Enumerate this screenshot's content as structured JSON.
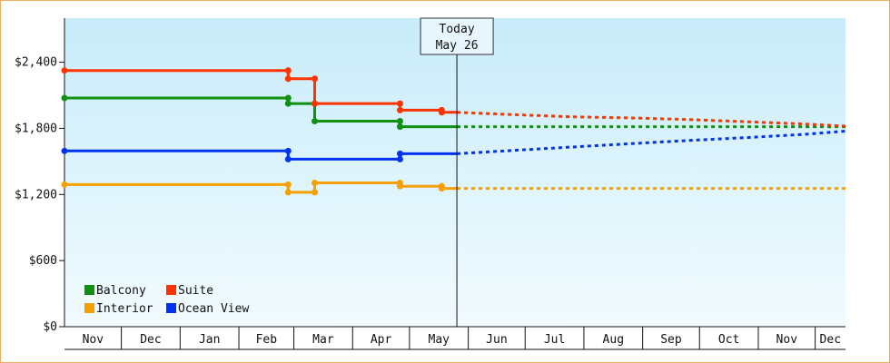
{
  "chart_data": {
    "type": "line",
    "subtype": "step",
    "title": "",
    "xlabel": "",
    "ylabel": "",
    "ylim": [
      0,
      2800
    ],
    "y_ticks": [
      {
        "value": 0,
        "label": "$0"
      },
      {
        "value": 600,
        "label": "$600"
      },
      {
        "value": 1200,
        "label": "$1,200"
      },
      {
        "value": 1800,
        "label": "$1,800"
      },
      {
        "value": 2400,
        "label": "$2,400"
      }
    ],
    "x_start": "2023-11-01",
    "x_end": "2024-12-17",
    "month_labels": [
      {
        "label": "Nov",
        "start": "2023-11-01",
        "end": "2023-12-01"
      },
      {
        "label": "Dec",
        "start": "2023-12-01",
        "end": "2024-01-01"
      },
      {
        "label": "Jan",
        "start": "2024-01-01",
        "end": "2024-02-01"
      },
      {
        "label": "Feb",
        "start": "2024-02-01",
        "end": "2024-03-01"
      },
      {
        "label": "Mar",
        "start": "2024-03-01",
        "end": "2024-04-01"
      },
      {
        "label": "Apr",
        "start": "2024-04-01",
        "end": "2024-05-01"
      },
      {
        "label": "May",
        "start": "2024-05-01",
        "end": "2024-06-01"
      },
      {
        "label": "Jun",
        "start": "2024-06-01",
        "end": "2024-07-01"
      },
      {
        "label": "Jul",
        "start": "2024-07-01",
        "end": "2024-08-01"
      },
      {
        "label": "Aug",
        "start": "2024-08-01",
        "end": "2024-09-01"
      },
      {
        "label": "Sep",
        "start": "2024-09-01",
        "end": "2024-10-01"
      },
      {
        "label": "Oct",
        "start": "2024-10-01",
        "end": "2024-11-01"
      },
      {
        "label": "Nov",
        "start": "2024-11-01",
        "end": "2024-12-01"
      },
      {
        "label": "Dec",
        "start": "2024-12-01",
        "end": "2024-12-17"
      }
    ],
    "today": {
      "date": "2024-05-26",
      "line1": "Today",
      "line2": "May 26"
    },
    "grid": false,
    "legend_position": "bottom-left",
    "series": [
      {
        "name": "Balcony",
        "color": "#109010",
        "history": [
          [
            "2023-11-01",
            2075
          ],
          [
            "2024-02-27",
            2075
          ],
          [
            "2024-02-27",
            2025
          ],
          [
            "2024-03-12",
            2025
          ],
          [
            "2024-03-12",
            1865
          ],
          [
            "2024-04-26",
            1865
          ],
          [
            "2024-04-26",
            1815
          ],
          [
            "2024-05-26",
            1815
          ]
        ],
        "markers": [
          [
            "2023-11-01",
            2075
          ],
          [
            "2024-02-27",
            2075
          ],
          [
            "2024-02-27",
            2025
          ],
          [
            "2024-03-12",
            2025
          ],
          [
            "2024-03-12",
            1865
          ],
          [
            "2024-04-26",
            1865
          ],
          [
            "2024-04-26",
            1815
          ]
        ],
        "forecast": [
          [
            "2024-05-26",
            1815
          ],
          [
            "2024-12-17",
            1815
          ]
        ]
      },
      {
        "name": "Suite",
        "color": "#ff3300",
        "history": [
          [
            "2023-11-01",
            2325
          ],
          [
            "2024-02-27",
            2325
          ],
          [
            "2024-02-27",
            2250
          ],
          [
            "2024-03-12",
            2250
          ],
          [
            "2024-03-12",
            2025
          ],
          [
            "2024-04-26",
            2025
          ],
          [
            "2024-04-26",
            1965
          ],
          [
            "2024-05-18",
            1965
          ],
          [
            "2024-05-18",
            1945
          ],
          [
            "2024-05-26",
            1945
          ]
        ],
        "markers": [
          [
            "2023-11-01",
            2325
          ],
          [
            "2024-02-27",
            2325
          ],
          [
            "2024-02-27",
            2250
          ],
          [
            "2024-03-12",
            2250
          ],
          [
            "2024-03-12",
            2025
          ],
          [
            "2024-04-26",
            2025
          ],
          [
            "2024-04-26",
            1965
          ],
          [
            "2024-05-18",
            1965
          ],
          [
            "2024-05-18",
            1945
          ]
        ],
        "forecast": [
          [
            "2024-05-26",
            1945
          ],
          [
            "2024-06-25",
            1925
          ],
          [
            "2024-07-25",
            1905
          ],
          [
            "2024-08-25",
            1895
          ],
          [
            "2024-09-25",
            1880
          ],
          [
            "2024-10-25",
            1860
          ],
          [
            "2024-11-25",
            1840
          ],
          [
            "2024-12-17",
            1820
          ]
        ]
      },
      {
        "name": "Interior",
        "color": "#f5a000",
        "history": [
          [
            "2023-11-01",
            1290
          ],
          [
            "2024-02-27",
            1290
          ],
          [
            "2024-02-27",
            1220
          ],
          [
            "2024-03-12",
            1220
          ],
          [
            "2024-03-12",
            1305
          ],
          [
            "2024-04-26",
            1305
          ],
          [
            "2024-04-26",
            1275
          ],
          [
            "2024-05-18",
            1275
          ],
          [
            "2024-05-18",
            1255
          ],
          [
            "2024-05-26",
            1255
          ]
        ],
        "markers": [
          [
            "2023-11-01",
            1290
          ],
          [
            "2024-02-27",
            1290
          ],
          [
            "2024-02-27",
            1220
          ],
          [
            "2024-03-12",
            1220
          ],
          [
            "2024-03-12",
            1305
          ],
          [
            "2024-04-26",
            1305
          ],
          [
            "2024-04-26",
            1275
          ],
          [
            "2024-05-18",
            1275
          ],
          [
            "2024-05-18",
            1255
          ]
        ],
        "forecast": [
          [
            "2024-05-26",
            1255
          ],
          [
            "2024-12-17",
            1255
          ]
        ]
      },
      {
        "name": "Ocean View",
        "color": "#0033ee",
        "history": [
          [
            "2023-11-01",
            1595
          ],
          [
            "2024-02-27",
            1595
          ],
          [
            "2024-02-27",
            1520
          ],
          [
            "2024-04-26",
            1520
          ],
          [
            "2024-04-26",
            1570
          ],
          [
            "2024-05-26",
            1570
          ]
        ],
        "markers": [
          [
            "2023-11-01",
            1595
          ],
          [
            "2024-02-27",
            1595
          ],
          [
            "2024-02-27",
            1520
          ],
          [
            "2024-04-26",
            1520
          ],
          [
            "2024-04-26",
            1570
          ]
        ],
        "forecast": [
          [
            "2024-05-26",
            1570
          ],
          [
            "2024-06-25",
            1600
          ],
          [
            "2024-07-25",
            1630
          ],
          [
            "2024-08-25",
            1660
          ],
          [
            "2024-09-25",
            1690
          ],
          [
            "2024-10-25",
            1715
          ],
          [
            "2024-11-25",
            1745
          ],
          [
            "2024-12-17",
            1775
          ]
        ]
      }
    ],
    "legend_rows": [
      [
        "Balcony",
        "Suite"
      ],
      [
        "Interior",
        "Ocean View"
      ]
    ]
  },
  "colors": {
    "frame_border": "#e8b060",
    "plot_gradient_top": "#c8ecfa",
    "plot_gradient_bottom": "#f2fbfe",
    "axis": "#111111",
    "today_box_fill": "#e6f6fc"
  }
}
